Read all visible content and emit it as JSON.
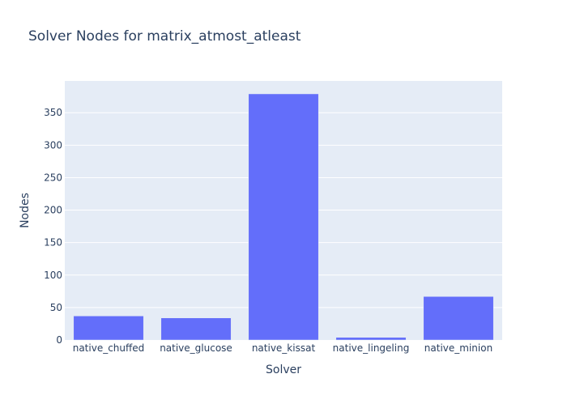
{
  "chart_data": {
    "type": "bar",
    "title": "Solver Nodes for matrix_atmost_atleast",
    "xlabel": "Solver",
    "ylabel": "Nodes",
    "categories": [
      "native_chuffed",
      "native_glucose",
      "native_kissat",
      "native_lingeling",
      "native_minion"
    ],
    "values": [
      37,
      34,
      379,
      4,
      67
    ],
    "ylim": [
      0,
      398.9
    ],
    "yticks": [
      0,
      50,
      100,
      150,
      200,
      250,
      300,
      350
    ],
    "grid": true,
    "legend": "none"
  },
  "colors": {
    "bar": "#636efa",
    "plot_bg": "#e5ecf6",
    "grid": "#ffffff",
    "text": "#2a3f5f"
  }
}
